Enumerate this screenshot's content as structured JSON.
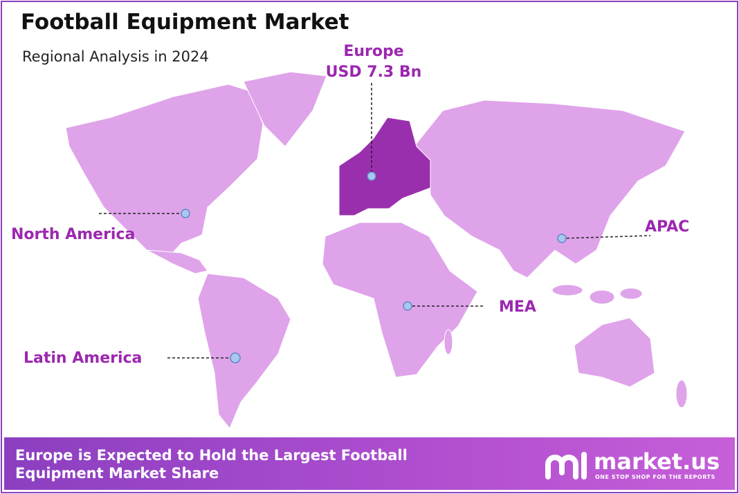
{
  "header": {
    "title": "Football Equipment Market",
    "subtitle": "Regional Analysis in 2024"
  },
  "regions": [
    {
      "name": "Europe",
      "value": "USD 7.3 Bn"
    },
    {
      "name": "North America"
    },
    {
      "name": "APAC"
    },
    {
      "name": "MEA"
    },
    {
      "name": "Latin America"
    }
  ],
  "footer": {
    "text": "Europe is Expected to Hold the Largest Football Equipment Market Share",
    "brand": "market.us",
    "tagline": "ONE STOP SHOP FOR THE REPORTS"
  }
}
